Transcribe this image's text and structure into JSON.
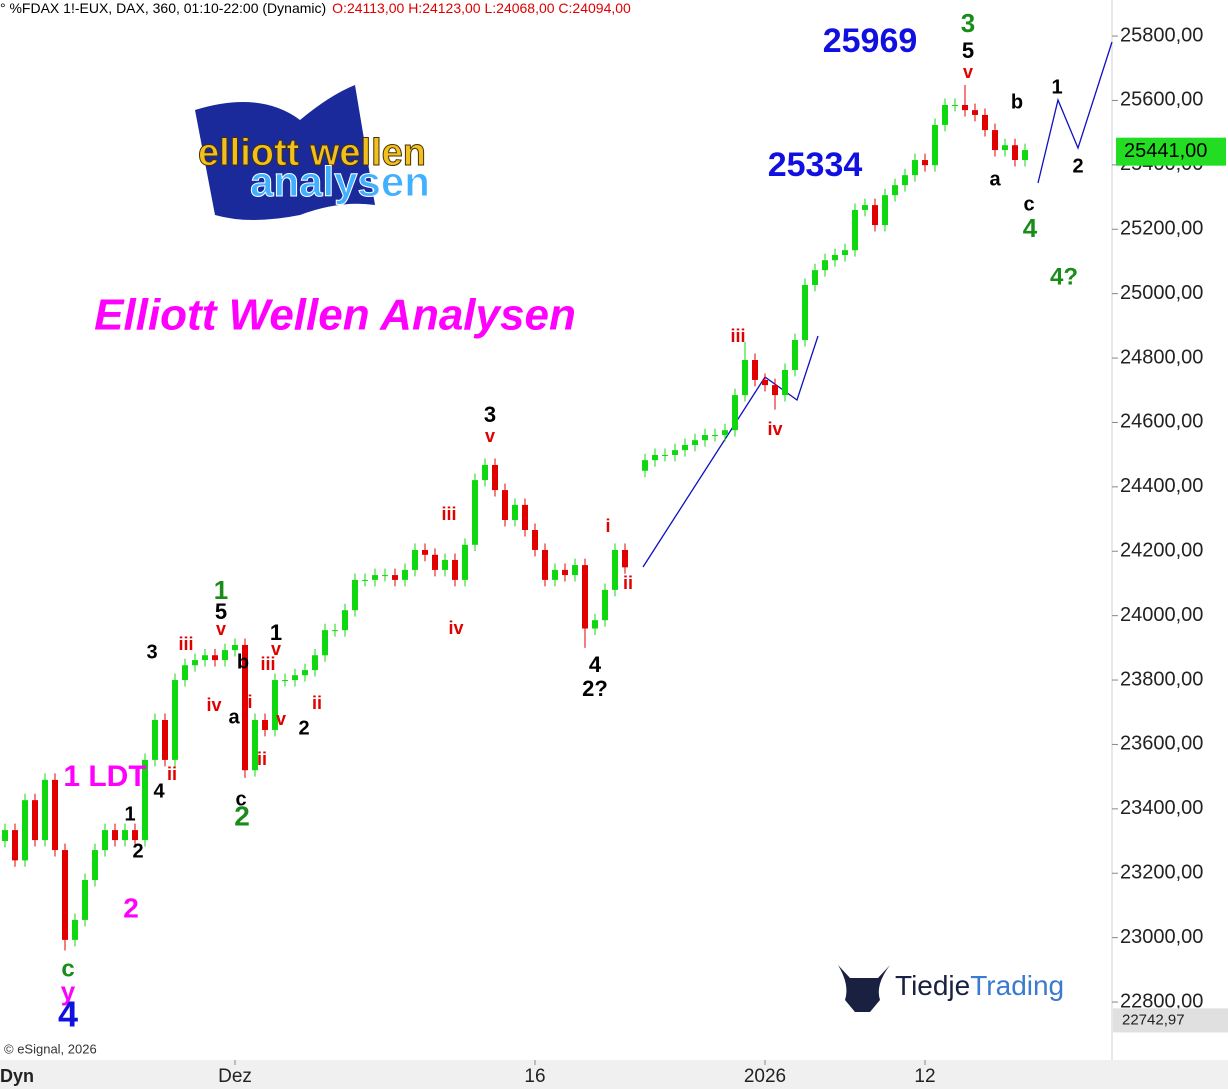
{
  "chart_data": {
    "type": "candlestick",
    "header": "° %FDAX 1!-EUX, DAX, 360, 01:10-22:00 (Dynamic)",
    "header_ohlc": "O:24113,00 H:24123,00 L:24068,00 C:24094,00",
    "title": "Elliott Wellen Analysen",
    "logo": [
      "elliott wellen",
      "analysen"
    ],
    "brand": [
      "Tiedje",
      "Trading"
    ],
    "copyright": "© eSignal, 2026",
    "mode": "Dyn",
    "up_color": "#10d810",
    "down_color": "#e00000",
    "categories": [
      null,
      null,
      null,
      null,
      null,
      null,
      null,
      null,
      null,
      null,
      null,
      null,
      null,
      null,
      null,
      null,
      null,
      null,
      null,
      null,
      null,
      null,
      null,
      "Dez",
      null,
      null,
      null,
      null,
      null,
      null,
      null,
      null,
      null,
      null,
      null,
      null,
      null,
      null,
      null,
      null,
      null,
      null,
      null,
      null,
      null,
      null,
      null,
      null,
      null,
      null,
      null,
      null,
      null,
      "16",
      null,
      null,
      null,
      null,
      null,
      null,
      null,
      null,
      null,
      null,
      null,
      null,
      null,
      null,
      null,
      null,
      null,
      null,
      null,
      null,
      null,
      null,
      "2026",
      null,
      null,
      null,
      null,
      null,
      null,
      null,
      null,
      null,
      null,
      null,
      null,
      null,
      null,
      null,
      "12",
      null,
      null,
      null,
      null,
      null,
      null,
      null,
      null,
      null,
      null
    ],
    "open": [
      23300,
      23334,
      23240,
      23427,
      23303,
      23490,
      23272,
      22993,
      23055,
      23179,
      23272,
      23334,
      23303,
      23334,
      23303,
      23552,
      23676,
      23552,
      23800,
      23846,
      23862,
      23877,
      23862,
      23893,
      23909,
      23520,
      23676,
      23645,
      23800,
      23800,
      23815,
      23831,
      23877,
      23955,
      23955,
      24017,
      24111,
      24111,
      24126,
      24126,
      24111,
      24142,
      24204,
      24189,
      24142,
      24173,
      24111,
      24220,
      24421,
      24468,
      24390,
      24297,
      24344,
      24266,
      24204,
      24111,
      24142,
      24126,
      24157,
      23960,
      23986,
      24080,
      24204,
      null,
      24450,
      24483,
      24499,
      24499,
      24514,
      24530,
      24545,
      24561,
      24561,
      24576,
      24685,
      24794,
      24732,
      24716,
      24685,
      24763,
      24856,
      25027,
      25073,
      25104,
      25120,
      25135,
      25260,
      25275,
      25213,
      25306,
      25337,
      25368,
      25415,
      25399,
      25524,
      25586,
      25586,
      25570,
      25555,
      25508,
      25446,
      25461,
      25415
    ],
    "high": [
      23354,
      23354,
      23447,
      23447,
      23510,
      23510,
      23292,
      23075,
      23199,
      23292,
      23354,
      23354,
      23354,
      23354,
      23572,
      23696,
      23696,
      23820,
      23866,
      23882,
      23897,
      23897,
      23913,
      23929,
      23929,
      23696,
      23696,
      23820,
      23820,
      23835,
      23851,
      23897,
      23975,
      23975,
      24037,
      24131,
      24131,
      24146,
      24146,
      24146,
      24162,
      24224,
      24224,
      24209,
      24193,
      24193,
      24240,
      24441,
      24488,
      24488,
      24410,
      24364,
      24364,
      24286,
      24224,
      24162,
      24162,
      24177,
      24177,
      24006,
      24100,
      24224,
      24224,
      null,
      24503,
      24519,
      24519,
      24534,
      24550,
      24565,
      24581,
      24581,
      24596,
      24705,
      24850,
      24814,
      24752,
      24736,
      24783,
      24876,
      25047,
      25093,
      25124,
      25140,
      25155,
      25280,
      25295,
      25295,
      25326,
      25357,
      25388,
      25435,
      25435,
      25544,
      25606,
      25606,
      25648,
      25590,
      25575,
      25528,
      25481,
      25481,
      25466
    ],
    "low": [
      23280,
      23220,
      23220,
      23283,
      23283,
      23252,
      22960,
      22973,
      23035,
      23159,
      23252,
      23283,
      23283,
      23283,
      23283,
      23532,
      23532,
      23532,
      23780,
      23826,
      23842,
      23842,
      23842,
      23873,
      23496,
      23500,
      23625,
      23625,
      23780,
      23780,
      23795,
      23811,
      23857,
      23935,
      23935,
      23997,
      24091,
      24091,
      24106,
      24091,
      24091,
      24122,
      24169,
      24122,
      24122,
      24091,
      24091,
      24200,
      24401,
      24370,
      24277,
      24277,
      24246,
      24184,
      24091,
      24091,
      24106,
      24106,
      23900,
      23940,
      23966,
      24060,
      24130,
      null,
      24430,
      24463,
      24479,
      24479,
      24494,
      24510,
      24525,
      24541,
      24541,
      24556,
      24665,
      24712,
      24696,
      24640,
      24665,
      24743,
      24836,
      25007,
      25053,
      25084,
      25100,
      25115,
      25240,
      25193,
      25193,
      25286,
      25317,
      25348,
      25379,
      25379,
      25504,
      25566,
      25550,
      25535,
      25488,
      25426,
      25426,
      25395,
      25395
    ],
    "close": [
      23334,
      23240,
      23427,
      23303,
      23490,
      23272,
      22993,
      23055,
      23179,
      23272,
      23334,
      23303,
      23334,
      23303,
      23552,
      23676,
      23552,
      23800,
      23846,
      23862,
      23877,
      23862,
      23893,
      23909,
      23520,
      23676,
      23645,
      23800,
      23800,
      23815,
      23831,
      23877,
      23955,
      23955,
      24017,
      24111,
      24111,
      24126,
      24126,
      24111,
      24142,
      24204,
      24189,
      24142,
      24173,
      24111,
      24220,
      24421,
      24468,
      24390,
      24297,
      24344,
      24266,
      24204,
      24111,
      24142,
      24126,
      24157,
      23960,
      23986,
      24080,
      24204,
      24150,
      null,
      24483,
      24499,
      24499,
      24514,
      24530,
      24545,
      24561,
      24561,
      24576,
      24685,
      24794,
      24732,
      24716,
      24685,
      24763,
      24856,
      25027,
      25073,
      25104,
      25120,
      25135,
      25260,
      25275,
      25213,
      25306,
      25337,
      25368,
      25415,
      25399,
      25524,
      25586,
      25586,
      25570,
      25555,
      25508,
      25446,
      25461,
      25415,
      25446
    ],
    "ylim": [
      22620,
      25912
    ],
    "yticks": [
      {
        "value": 22800,
        "label": "22800,00"
      },
      {
        "value": 23000,
        "label": "23000,00"
      },
      {
        "value": 23200,
        "label": "23200,00"
      },
      {
        "value": 23400,
        "label": "23400,00"
      },
      {
        "value": 23600,
        "label": "23600,00"
      },
      {
        "value": 23800,
        "label": "23800,00"
      },
      {
        "value": 24000,
        "label": "24000,00"
      },
      {
        "value": 24200,
        "label": "24200,00"
      },
      {
        "value": 24400,
        "label": "24400,00"
      },
      {
        "value": 24600,
        "label": "24600,00"
      },
      {
        "value": 24800,
        "label": "24800,00"
      },
      {
        "value": 25000,
        "label": "25000,00"
      },
      {
        "value": 25200,
        "label": "25200,00"
      },
      {
        "value": 25400,
        "label": "25400,00"
      },
      {
        "value": 25600,
        "label": "25600,00"
      },
      {
        "value": 25800,
        "label": "25800,00"
      }
    ],
    "last_price": {
      "value": 25441,
      "label": "25441,00",
      "color": "#22dd22"
    },
    "range_low": {
      "value": 22742.97,
      "label": "22742,97"
    },
    "annotations": [
      {
        "text": "25969",
        "color": "#1010e0"
      },
      {
        "text": "25334",
        "color": "#1010e0"
      },
      {
        "text": "3",
        "color": "#1a8c1a"
      },
      {
        "text": "5",
        "color": "#000000"
      },
      {
        "text": "v",
        "color": "#e00000"
      },
      {
        "text": "b",
        "color": "#000000"
      },
      {
        "text": "a",
        "color": "#000000"
      },
      {
        "text": "c",
        "color": "#000000"
      },
      {
        "text": "4",
        "color": "#1a8c1a"
      },
      {
        "text": "4?",
        "color": "#1a8c1a"
      },
      {
        "text": "1",
        "color": "#000000"
      },
      {
        "text": "2",
        "color": "#000000"
      },
      {
        "text": "iii",
        "color": "#e00000"
      },
      {
        "text": "iv",
        "color": "#e00000"
      },
      {
        "text": "3",
        "color": "#000000"
      },
      {
        "text": "v",
        "color": "#e00000"
      },
      {
        "text": "iii",
        "color": "#e00000"
      },
      {
        "text": "iv",
        "color": "#e00000"
      },
      {
        "text": "i",
        "color": "#e00000"
      },
      {
        "text": "ii",
        "color": "#e00000"
      },
      {
        "text": "4",
        "color": "#000000"
      },
      {
        "text": "2?",
        "color": "#000000"
      },
      {
        "text": "1",
        "color": "#1a8c1a"
      },
      {
        "text": "5",
        "color": "#000000"
      },
      {
        "text": "v",
        "color": "#e00000"
      },
      {
        "text": "1",
        "color": "#000000"
      },
      {
        "text": "v",
        "color": "#e00000"
      },
      {
        "text": "3",
        "color": "#000000"
      },
      {
        "text": "iii",
        "color": "#e00000"
      },
      {
        "text": "iv",
        "color": "#e00000"
      },
      {
        "text": "b",
        "color": "#000000"
      },
      {
        "text": "a",
        "color": "#000000"
      },
      {
        "text": "i",
        "color": "#e00000"
      },
      {
        "text": "iii",
        "color": "#e00000"
      },
      {
        "text": "v",
        "color": "#e00000"
      },
      {
        "text": "ii",
        "color": "#e00000"
      },
      {
        "text": "2",
        "color": "#000000"
      },
      {
        "text": "ii",
        "color": "#e00000"
      },
      {
        "text": "c",
        "color": "#000000"
      },
      {
        "text": "2",
        "color": "#1a8c1a"
      },
      {
        "text": "1 LDT",
        "color": "#ff00ff"
      },
      {
        "text": "ii",
        "color": "#e00000"
      },
      {
        "text": "4",
        "color": "#000000"
      },
      {
        "text": "1",
        "color": "#000000"
      },
      {
        "text": "2",
        "color": "#000000"
      },
      {
        "text": "2",
        "color": "#ff00ff"
      },
      {
        "text": "c",
        "color": "#1a8c1a"
      },
      {
        "text": "y",
        "color": "#ff00ff"
      },
      {
        "text": "4",
        "color": "#1010e0"
      }
    ]
  }
}
